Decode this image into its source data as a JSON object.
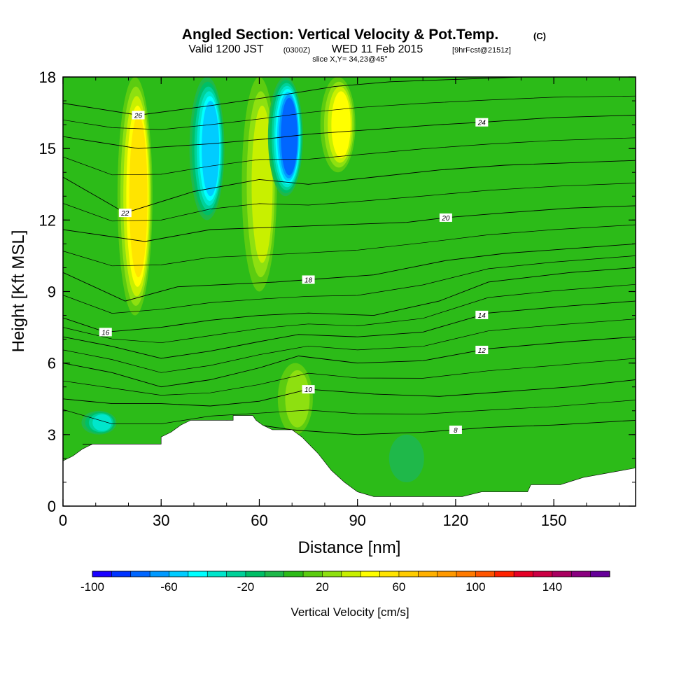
{
  "title": {
    "main": "Angled Section: Vertical Velocity & Pot.Temp.",
    "unit": "(C)",
    "valid_a": "Valid 1200 JST",
    "valid_b": "(0300Z)",
    "valid_c": "WED 11 Feb 2015",
    "valid_d": "[9hrFcst@2151z]",
    "slice": "slice X,Y= 34,23@45°"
  },
  "chart_data": {
    "type": "heatmap",
    "xlabel": "Distance [nm]",
    "ylabel": "Height [Kft MSL]",
    "xlim": [
      0,
      175
    ],
    "ylim": [
      0,
      18
    ],
    "x_ticks": [
      "0",
      "30",
      "60",
      "90",
      "120",
      "150"
    ],
    "y_ticks": [
      "0",
      "3",
      "6",
      "9",
      "12",
      "15",
      "18"
    ],
    "colorbar": {
      "label": "Vertical Velocity [cm/s]",
      "tick_labels": [
        "-100",
        "-60",
        "-20",
        "20",
        "60",
        "100",
        "140"
      ],
      "levels": [
        -100,
        -90,
        -80,
        -70,
        -60,
        -50,
        -40,
        -30,
        -20,
        -10,
        0,
        10,
        20,
        30,
        40,
        50,
        60,
        70,
        80,
        90,
        100,
        110,
        120,
        130,
        140,
        150,
        160
      ],
      "colors": [
        "#1a00ff",
        "#0033ff",
        "#0066ff",
        "#0099ff",
        "#00ccff",
        "#00ffff",
        "#00e6cc",
        "#00d199",
        "#00bf66",
        "#1fb84a",
        "#2dbb18",
        "#5ccc10",
        "#8ee010",
        "#c8f000",
        "#ffff00",
        "#ffe400",
        "#ffcc00",
        "#ffb000",
        "#ff9900",
        "#ff7a00",
        "#ff5500",
        "#ff2200",
        "#e60026",
        "#cc0044",
        "#aa0060",
        "#8a0080",
        "#660099"
      ]
    },
    "terrain": [
      [
        0,
        1.9
      ],
      [
        3,
        2.1
      ],
      [
        6,
        2.4
      ],
      [
        9,
        2.6
      ],
      [
        30,
        2.6
      ],
      [
        30,
        2.9
      ],
      [
        33,
        3.1
      ],
      [
        36,
        3.4
      ],
      [
        39,
        3.6
      ],
      [
        52,
        3.6
      ],
      [
        52,
        3.8
      ],
      [
        58,
        3.8
      ],
      [
        59,
        3.6
      ],
      [
        61,
        3.4
      ],
      [
        64,
        3.2
      ],
      [
        70,
        3.2
      ],
      [
        73,
        2.9
      ],
      [
        78,
        2.2
      ],
      [
        82,
        1.5
      ],
      [
        86,
        1.0
      ],
      [
        90,
        0.6
      ],
      [
        95,
        0.4
      ],
      [
        122,
        0.4
      ],
      [
        128,
        0.6
      ],
      [
        142,
        0.6
      ],
      [
        143,
        0.9
      ],
      [
        152,
        0.9
      ],
      [
        159,
        1.2
      ],
      [
        167,
        1.4
      ],
      [
        175,
        1.6
      ]
    ],
    "velocity_features": [
      {
        "x": 22,
        "y_range": [
          8,
          18
        ],
        "value": 50
      },
      {
        "x": 44,
        "y_range": [
          12,
          18
        ],
        "value": -60
      },
      {
        "x": 60,
        "y_range": [
          9,
          18
        ],
        "value": 30
      },
      {
        "x": 68,
        "y_range": [
          13,
          18
        ],
        "value": -80
      },
      {
        "x": 84,
        "y_range": [
          14,
          18
        ],
        "value": 40
      },
      {
        "x": 11,
        "y_range": [
          3,
          4
        ],
        "value": -40
      },
      {
        "x": 71,
        "y_range": [
          3,
          6
        ],
        "value": 20
      },
      {
        "x": 105,
        "y_range": [
          1,
          3
        ],
        "value": -10
      }
    ],
    "isentropes": [
      {
        "level": 8,
        "points": [
          [
            6,
            2.6
          ],
          [
            20,
            2.6
          ],
          [
            30,
            2.6
          ],
          [
            50,
            3.6
          ],
          [
            70,
            3.2
          ],
          [
            90,
            3.0
          ],
          [
            110,
            3.1
          ],
          [
            130,
            3.3
          ],
          [
            150,
            3.4
          ],
          [
            175,
            3.6
          ]
        ],
        "label_x": 120
      },
      {
        "level": 10,
        "points": [
          [
            0,
            4.5
          ],
          [
            15,
            4.3
          ],
          [
            30,
            4.3
          ],
          [
            45,
            4.2
          ],
          [
            60,
            4.4
          ],
          [
            75,
            4.9
          ],
          [
            95,
            4.7
          ],
          [
            115,
            4.6
          ],
          [
            135,
            4.8
          ],
          [
            155,
            5.0
          ],
          [
            175,
            5.3
          ]
        ],
        "label_x": 75
      },
      {
        "level": 12,
        "points": [
          [
            0,
            6.0
          ],
          [
            15,
            5.6
          ],
          [
            30,
            5.0
          ],
          [
            45,
            5.3
          ],
          [
            60,
            5.8
          ],
          [
            72,
            6.3
          ],
          [
            90,
            6.0
          ],
          [
            110,
            6.1
          ],
          [
            130,
            6.6
          ],
          [
            155,
            6.9
          ],
          [
            175,
            7.1
          ]
        ],
        "label_x": 128
      },
      {
        "level": 14,
        "points": [
          [
            0,
            7.1
          ],
          [
            15,
            6.7
          ],
          [
            30,
            6.2
          ],
          [
            45,
            6.5
          ],
          [
            60,
            6.9
          ],
          [
            72,
            7.2
          ],
          [
            90,
            7.1
          ],
          [
            110,
            7.3
          ],
          [
            130,
            8.1
          ],
          [
            155,
            8.4
          ],
          [
            175,
            8.6
          ]
        ],
        "label_x": 128
      },
      {
        "level": 16,
        "points": [
          [
            0,
            7.9
          ],
          [
            13,
            7.3
          ],
          [
            30,
            7.5
          ],
          [
            45,
            7.8
          ],
          [
            60,
            8.0
          ],
          [
            75,
            8.1
          ],
          [
            95,
            8.0
          ],
          [
            115,
            8.6
          ],
          [
            130,
            9.4
          ],
          [
            155,
            9.8
          ],
          [
            175,
            10.0
          ]
        ],
        "label_x": 13
      },
      {
        "level": 18,
        "points": [
          [
            0,
            9.8
          ],
          [
            19,
            8.6
          ],
          [
            35,
            9.2
          ],
          [
            50,
            9.3
          ],
          [
            65,
            9.4
          ],
          [
            75,
            9.5
          ],
          [
            95,
            9.7
          ],
          [
            117,
            10.3
          ],
          [
            135,
            10.6
          ],
          [
            155,
            10.8
          ],
          [
            175,
            11.0
          ]
        ],
        "label_x": 75
      },
      {
        "level": 20,
        "points": [
          [
            0,
            11.6
          ],
          [
            25,
            11.1
          ],
          [
            45,
            11.6
          ],
          [
            65,
            11.7
          ],
          [
            85,
            11.8
          ],
          [
            105,
            11.9
          ],
          [
            117,
            12.1
          ],
          [
            135,
            12.3
          ],
          [
            155,
            12.5
          ],
          [
            175,
            12.6
          ]
        ],
        "label_x": 117
      },
      {
        "level": 22,
        "points": [
          [
            0,
            13.8
          ],
          [
            19,
            12.3
          ],
          [
            40,
            13.2
          ],
          [
            60,
            13.7
          ],
          [
            75,
            13.5
          ],
          [
            95,
            13.8
          ],
          [
            115,
            14.1
          ],
          [
            135,
            14.3
          ],
          [
            155,
            14.4
          ],
          [
            175,
            14.5
          ]
        ],
        "label_x": 19
      },
      {
        "level": 24,
        "points": [
          [
            0,
            15.5
          ],
          [
            23,
            15.0
          ],
          [
            45,
            15.2
          ],
          [
            62,
            15.4
          ],
          [
            75,
            15.6
          ],
          [
            95,
            15.8
          ],
          [
            115,
            16.0
          ],
          [
            128,
            16.1
          ],
          [
            150,
            16.3
          ],
          [
            175,
            16.4
          ]
        ],
        "label_x": 128
      },
      {
        "level": 26,
        "points": [
          [
            0,
            16.9
          ],
          [
            23,
            16.4
          ],
          [
            45,
            16.8
          ],
          [
            65,
            17.2
          ],
          [
            83,
            17.6
          ],
          [
            100,
            17.8
          ],
          [
            120,
            17.9
          ],
          [
            140,
            18.0
          ]
        ],
        "label_x": 23
      }
    ]
  }
}
